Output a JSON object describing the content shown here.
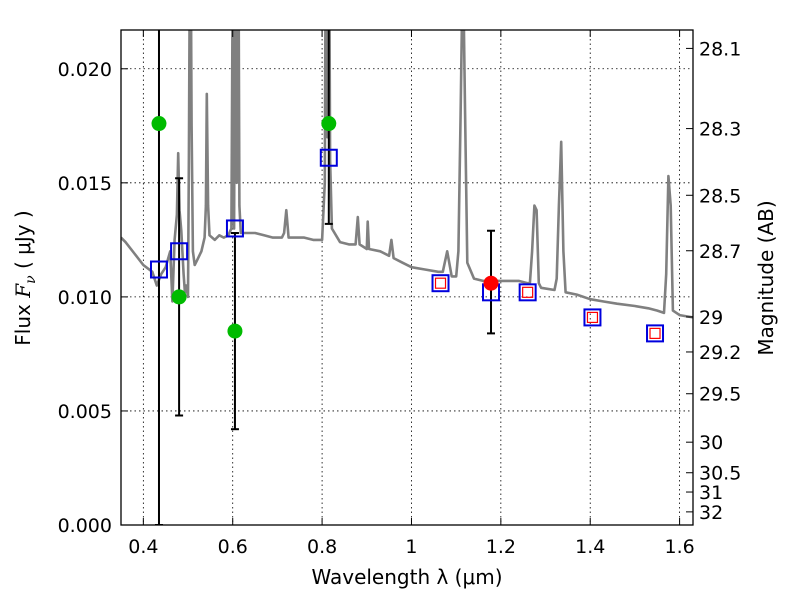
{
  "chart_data": {
    "type": "scatter",
    "xlabel": "Wavelength  λ (μm)",
    "ylabel_prefix": "Flux  ",
    "ylabel_symbol": "F",
    "ylabel_subscript": "ν",
    "ylabel_unit": "  ( μJy )",
    "ylabel_right": "Magnitude (AB)",
    "xlim": [
      0.35,
      1.63
    ],
    "ylim": [
      0.0,
      0.0217
    ],
    "grid": true,
    "x_ticks": [
      {
        "value": 0.4,
        "label": "0.4"
      },
      {
        "value": 0.6,
        "label": "0.6"
      },
      {
        "value": 0.8,
        "label": "0.8"
      },
      {
        "value": 1.0,
        "label": "1"
      },
      {
        "value": 1.2,
        "label": "1.2"
      },
      {
        "value": 1.4,
        "label": "1.4"
      },
      {
        "value": 1.6,
        "label": "1.6"
      }
    ],
    "y_ticks": [
      {
        "value": 0.0,
        "label": "0.000"
      },
      {
        "value": 0.005,
        "label": "0.005"
      },
      {
        "value": 0.01,
        "label": "0.010"
      },
      {
        "value": 0.015,
        "label": "0.015"
      },
      {
        "value": 0.02,
        "label": "0.020"
      }
    ],
    "mag_ticks": [
      {
        "mag": 28.1,
        "label": "28.1"
      },
      {
        "mag": 28.3,
        "label": "28.3"
      },
      {
        "mag": 28.5,
        "label": "28.5"
      },
      {
        "mag": 28.7,
        "label": "28.7"
      },
      {
        "mag": 29.0,
        "label": "29"
      },
      {
        "mag": 29.2,
        "label": "29.2"
      },
      {
        "mag": 29.5,
        "label": "29.5"
      },
      {
        "mag": 30.0,
        "label": "30"
      },
      {
        "mag": 30.5,
        "label": "30.5"
      },
      {
        "mag": 31.0,
        "label": "31"
      },
      {
        "mag": 32.0,
        "label": "32"
      }
    ],
    "colors": {
      "sed": "#808080",
      "observed": "#00bb00",
      "detection": "#ff0000",
      "model_blue": "#0000dd",
      "model_red": "#ff0000",
      "errorbar": "#000000"
    },
    "sed_model": [
      [
        0.35,
        0.0126
      ],
      [
        0.36,
        0.0124
      ],
      [
        0.38,
        0.0119
      ],
      [
        0.4,
        0.0114
      ],
      [
        0.42,
        0.0111
      ],
      [
        0.43,
        0.0105
      ],
      [
        0.44,
        0.011
      ],
      [
        0.45,
        0.0113
      ],
      [
        0.46,
        0.012
      ],
      [
        0.465,
        0.0098
      ],
      [
        0.47,
        0.0125
      ],
      [
        0.475,
        0.0136
      ],
      [
        0.478,
        0.0163
      ],
      [
        0.481,
        0.0138
      ],
      [
        0.485,
        0.0129
      ],
      [
        0.49,
        0.011
      ],
      [
        0.493,
        0.0102
      ],
      [
        0.496,
        0.0105
      ],
      [
        0.5,
        0.01
      ],
      [
        0.502,
        0.0162
      ],
      [
        0.505,
        0.029
      ],
      [
        0.508,
        0.0175
      ],
      [
        0.511,
        0.012
      ],
      [
        0.515,
        0.0114
      ],
      [
        0.52,
        0.0116
      ],
      [
        0.53,
        0.012
      ],
      [
        0.537,
        0.0126
      ],
      [
        0.54,
        0.014
      ],
      [
        0.542,
        0.0189
      ],
      [
        0.545,
        0.014
      ],
      [
        0.548,
        0.0127
      ],
      [
        0.56,
        0.0125
      ],
      [
        0.57,
        0.0127
      ],
      [
        0.58,
        0.0126
      ],
      [
        0.59,
        0.0127
      ],
      [
        0.597,
        0.013
      ],
      [
        0.6,
        0.024
      ],
      [
        0.603,
        0.013
      ],
      [
        0.606,
        0.03
      ],
      [
        0.609,
        0.015
      ],
      [
        0.612,
        0.03
      ],
      [
        0.615,
        0.014
      ],
      [
        0.618,
        0.0128
      ],
      [
        0.63,
        0.0128
      ],
      [
        0.65,
        0.0128
      ],
      [
        0.67,
        0.0127
      ],
      [
        0.69,
        0.0126
      ],
      [
        0.71,
        0.0126
      ],
      [
        0.715,
        0.0128
      ],
      [
        0.72,
        0.0138
      ],
      [
        0.725,
        0.0126
      ],
      [
        0.74,
        0.0126
      ],
      [
        0.76,
        0.0126
      ],
      [
        0.78,
        0.0125
      ],
      [
        0.8,
        0.0125
      ],
      [
        0.806,
        0.015
      ],
      [
        0.809,
        0.03
      ],
      [
        0.812,
        0.017
      ],
      [
        0.815,
        0.03
      ],
      [
        0.818,
        0.016
      ],
      [
        0.822,
        0.013
      ],
      [
        0.84,
        0.0124
      ],
      [
        0.86,
        0.0123
      ],
      [
        0.875,
        0.0123
      ],
      [
        0.88,
        0.0135
      ],
      [
        0.884,
        0.0123
      ],
      [
        0.9,
        0.0121
      ],
      [
        0.902,
        0.0133
      ],
      [
        0.905,
        0.0121
      ],
      [
        0.93,
        0.012
      ],
      [
        0.95,
        0.0118
      ],
      [
        0.955,
        0.0125
      ],
      [
        0.96,
        0.0117
      ],
      [
        0.98,
        0.0115
      ],
      [
        1.0,
        0.0113
      ],
      [
        1.03,
        0.0112
      ],
      [
        1.06,
        0.0111
      ],
      [
        1.07,
        0.0111
      ],
      [
        1.08,
        0.012
      ],
      [
        1.09,
        0.0109
      ],
      [
        1.1,
        0.0109
      ],
      [
        1.105,
        0.012
      ],
      [
        1.11,
        0.018
      ],
      [
        1.115,
        0.025
      ],
      [
        1.12,
        0.018
      ],
      [
        1.125,
        0.0115
      ],
      [
        1.14,
        0.0108
      ],
      [
        1.16,
        0.0107
      ],
      [
        1.18,
        0.0107
      ],
      [
        1.2,
        0.0107
      ],
      [
        1.24,
        0.0107
      ],
      [
        1.26,
        0.0106
      ],
      [
        1.265,
        0.0106
      ],
      [
        1.27,
        0.012
      ],
      [
        1.275,
        0.014
      ],
      [
        1.28,
        0.0138
      ],
      [
        1.285,
        0.0106
      ],
      [
        1.29,
        0.0104
      ],
      [
        1.32,
        0.0103
      ],
      [
        1.325,
        0.0108
      ],
      [
        1.33,
        0.014
      ],
      [
        1.335,
        0.0168
      ],
      [
        1.34,
        0.012
      ],
      [
        1.345,
        0.0102
      ],
      [
        1.37,
        0.0101
      ],
      [
        1.4,
        0.0099
      ],
      [
        1.43,
        0.0098
      ],
      [
        1.46,
        0.0097
      ],
      [
        1.5,
        0.0096
      ],
      [
        1.53,
        0.0095
      ],
      [
        1.55,
        0.0094
      ],
      [
        1.565,
        0.0093
      ],
      [
        1.57,
        0.011
      ],
      [
        1.575,
        0.0153
      ],
      [
        1.58,
        0.014
      ],
      [
        1.585,
        0.0094
      ],
      [
        1.6,
        0.0092
      ],
      [
        1.63,
        0.0091
      ]
    ],
    "observed_points": [
      {
        "x": 0.435,
        "y": 0.0176,
        "err_low": 0.0,
        "err_high": 0.03
      },
      {
        "x": 0.48,
        "y": 0.01,
        "err_low": 0.0048,
        "err_high": 0.0152
      },
      {
        "x": 0.605,
        "y": 0.0085,
        "err_low": 0.0042,
        "err_high": 0.0128
      },
      {
        "x": 0.815,
        "y": 0.0176,
        "err_low": 0.0132,
        "err_high": 0.03
      }
    ],
    "detection_point": {
      "x": 1.178,
      "y": 0.0106,
      "err_low": 0.0084,
      "err_high": 0.0129
    },
    "model_photometry_blue": [
      {
        "x": 0.435,
        "y": 0.0112
      },
      {
        "x": 0.48,
        "y": 0.012
      },
      {
        "x": 0.605,
        "y": 0.013
      },
      {
        "x": 0.815,
        "y": 0.0161
      },
      {
        "x": 1.065,
        "y": 0.0106
      },
      {
        "x": 1.178,
        "y": 0.0102
      },
      {
        "x": 1.26,
        "y": 0.0102
      },
      {
        "x": 1.405,
        "y": 0.0091
      },
      {
        "x": 1.545,
        "y": 0.0084
      }
    ],
    "model_photometry_red": [
      {
        "x": 1.065,
        "y": 0.0106
      },
      {
        "x": 1.26,
        "y": 0.0102
      },
      {
        "x": 1.405,
        "y": 0.0091
      },
      {
        "x": 1.545,
        "y": 0.0084
      }
    ]
  }
}
